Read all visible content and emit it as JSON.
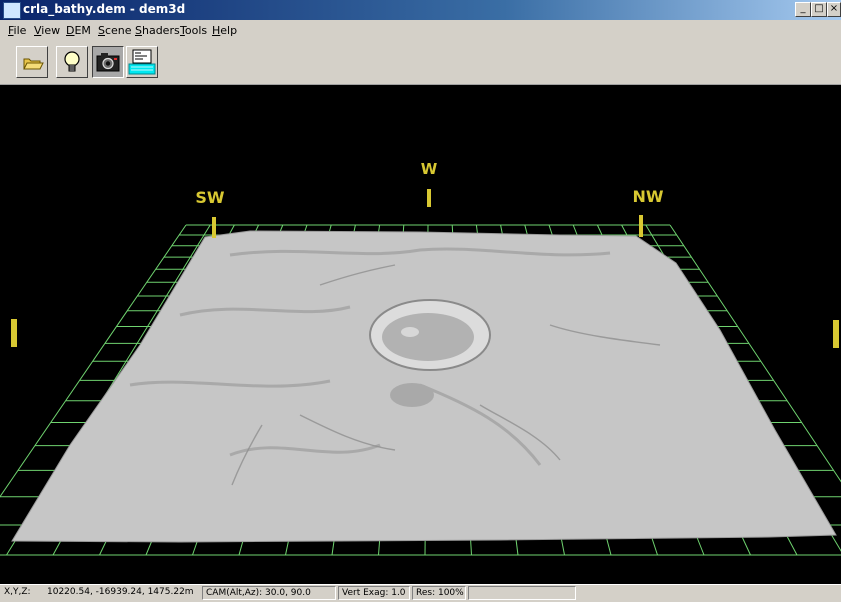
{
  "window": {
    "title": "crla_bathy.dem - dem3d"
  },
  "title_buttons": {
    "minimize": "_",
    "maximize": "□",
    "close": "×"
  },
  "menu": {
    "items": [
      {
        "label": "File"
      },
      {
        "label": "View"
      },
      {
        "label": "DEM"
      },
      {
        "label": "Scene"
      },
      {
        "label": "Shaders"
      },
      {
        "label": "Tools"
      },
      {
        "label": "Help"
      }
    ]
  },
  "toolbar": {
    "buttons": [
      {
        "icon": "open-folder-icon"
      },
      {
        "icon": "lightbulb-icon"
      },
      {
        "icon": "camera-icon"
      },
      {
        "icon": "dem-grid-icon"
      }
    ]
  },
  "compass": {
    "w": "W",
    "sw": "SW",
    "nw": "NW"
  },
  "status": {
    "xyz_label": "X,Y,Z:",
    "xyz_value": "10220.54,   -16939.24, 1475.22m",
    "cam": "CAM(Alt,Az): 30.0, 90.0",
    "vert_exag": "Vert Exag:  1.0",
    "res": "Res: 100%"
  },
  "colors": {
    "grid": "#6fd36f",
    "compass": "#d8c832",
    "viewport_bg": "#000000",
    "terrain": "#c9c9c9"
  }
}
